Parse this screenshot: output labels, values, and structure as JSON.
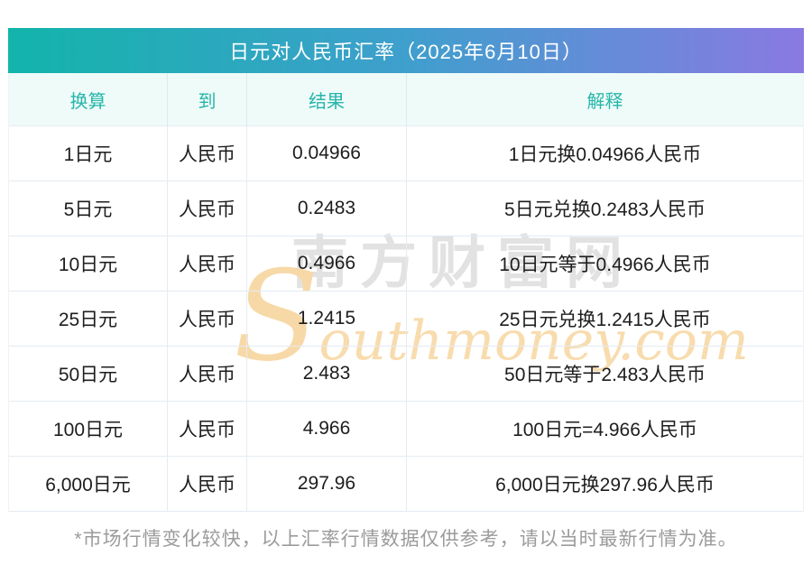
{
  "chart_data": {
    "type": "table",
    "title": "日元对人民币汇率（2025年6月10日）",
    "date": "2025年6月10日",
    "base_rate_jpy_to_cny": 0.04966,
    "columns": [
      "换算",
      "到",
      "结果",
      "解释"
    ],
    "rows": [
      [
        "1日元",
        "人民币",
        "0.04966",
        "1日元换0.04966人民币"
      ],
      [
        "5日元",
        "人民币",
        "0.2483",
        "5日元兑换0.2483人民币"
      ],
      [
        "10日元",
        "人民币",
        "0.4966",
        "10日元等于0.4966人民币"
      ],
      [
        "25日元",
        "人民币",
        "1.2415",
        "25日元兑换1.2415人民币"
      ],
      [
        "50日元",
        "人民币",
        "2.483",
        "50日元等于2.483人民币"
      ],
      [
        "100日元",
        "人民币",
        "4.966",
        "100日元=4.966人民币"
      ],
      [
        "6,000日元",
        "人民币",
        "297.96",
        "6,000日元换297.96人民币"
      ]
    ],
    "footnote": "*市场行情变化较快，以上汇率行情数据仅供参考，请以当时最新行情为准。",
    "watermark_cn": "南方财富网",
    "watermark_en": "Southmoney.com"
  },
  "colors": {
    "title_gradient_start": "#13b4ab",
    "title_gradient_mid": "#3f9fcd",
    "title_gradient_end": "#8a79e2",
    "title_text": "#ffffff",
    "header_bg": "#eefbf9",
    "header_text": "#27b5aa",
    "body_text": "#1d1d1d",
    "row_border": "#e4ebf1",
    "footnote_text": "#9b9b9b",
    "watermark_cn_color": "#e2e2e2",
    "watermark_en_color": "#f8dcae"
  }
}
